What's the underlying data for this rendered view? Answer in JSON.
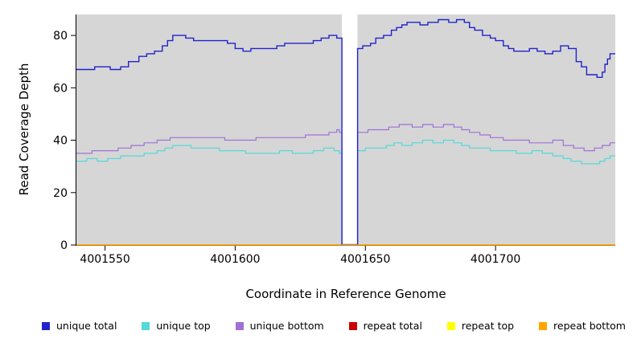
{
  "chart_data": {
    "type": "line",
    "subtype": "step-coverage",
    "title": "",
    "xlabel": "Coordinate in Reference Genome",
    "ylabel": "Read Coverage Depth",
    "xlim": [
      4001539,
      4001746
    ],
    "ylim": [
      0,
      88
    ],
    "xticks": [
      "4001550",
      "4001600",
      "4001650",
      "4001700"
    ],
    "xtick_values": [
      4001550,
      4001600,
      4001650,
      4001700
    ],
    "yticks": [
      "0",
      "20",
      "40",
      "60",
      "80"
    ],
    "ytick_values": [
      0,
      20,
      40,
      60,
      80
    ],
    "panel_bg": "#D6D6D6",
    "page_bg": "#FFFFFF",
    "grid": "off",
    "legend_position": "bottom",
    "gap_region": {
      "start": 4001641,
      "end": 4001647,
      "fill": "#FFFFFF"
    },
    "series": [
      {
        "name": "unique total",
        "color": "#2222CC",
        "step_points": [
          [
            4001539,
            67
          ],
          [
            4001546,
            68
          ],
          [
            4001552,
            67
          ],
          [
            4001556,
            68
          ],
          [
            4001559,
            70
          ],
          [
            4001563,
            72
          ],
          [
            4001566,
            73
          ],
          [
            4001569,
            74
          ],
          [
            4001572,
            76
          ],
          [
            4001574,
            78
          ],
          [
            4001576,
            80
          ],
          [
            4001581,
            79
          ],
          [
            4001584,
            78
          ],
          [
            4001597,
            77
          ],
          [
            4001600,
            75
          ],
          [
            4001603,
            74
          ],
          [
            4001606,
            75
          ],
          [
            4001616,
            76
          ],
          [
            4001619,
            77
          ],
          [
            4001630,
            78
          ],
          [
            4001633,
            79
          ],
          [
            4001636,
            80
          ],
          [
            4001639,
            79
          ],
          [
            4001641,
            0
          ],
          [
            4001647,
            75
          ],
          [
            4001649,
            76
          ],
          [
            4001652,
            77
          ],
          [
            4001654,
            79
          ],
          [
            4001657,
            80
          ],
          [
            4001660,
            82
          ],
          [
            4001662,
            83
          ],
          [
            4001664,
            84
          ],
          [
            4001666,
            85
          ],
          [
            4001671,
            84
          ],
          [
            4001674,
            85
          ],
          [
            4001678,
            86
          ],
          [
            4001682,
            85
          ],
          [
            4001685,
            86
          ],
          [
            4001688,
            85
          ],
          [
            4001690,
            83
          ],
          [
            4001692,
            82
          ],
          [
            4001695,
            80
          ],
          [
            4001698,
            79
          ],
          [
            4001700,
            78
          ],
          [
            4001703,
            76
          ],
          [
            4001705,
            75
          ],
          [
            4001707,
            74
          ],
          [
            4001713,
            75
          ],
          [
            4001716,
            74
          ],
          [
            4001719,
            73
          ],
          [
            4001722,
            74
          ],
          [
            4001725,
            76
          ],
          [
            4001728,
            75
          ],
          [
            4001731,
            70
          ],
          [
            4001733,
            68
          ],
          [
            4001735,
            65
          ],
          [
            4001739,
            64
          ],
          [
            4001741,
            66
          ],
          [
            4001742,
            69
          ],
          [
            4001743,
            71
          ],
          [
            4001744,
            73
          ]
        ]
      },
      {
        "name": "unique top",
        "color": "#55D8D8",
        "step_points": [
          [
            4001539,
            32
          ],
          [
            4001543,
            33
          ],
          [
            4001547,
            32
          ],
          [
            4001551,
            33
          ],
          [
            4001556,
            34
          ],
          [
            4001565,
            35
          ],
          [
            4001570,
            36
          ],
          [
            4001573,
            37
          ],
          [
            4001576,
            38
          ],
          [
            4001583,
            37
          ],
          [
            4001594,
            36
          ],
          [
            4001604,
            35
          ],
          [
            4001617,
            36
          ],
          [
            4001622,
            35
          ],
          [
            4001630,
            36
          ],
          [
            4001634,
            37
          ],
          [
            4001638,
            36
          ],
          [
            4001640,
            35
          ],
          [
            4001641,
            0
          ],
          [
            4001647,
            36
          ],
          [
            4001650,
            37
          ],
          [
            4001658,
            38
          ],
          [
            4001661,
            39
          ],
          [
            4001664,
            38
          ],
          [
            4001668,
            39
          ],
          [
            4001672,
            40
          ],
          [
            4001676,
            39
          ],
          [
            4001680,
            40
          ],
          [
            4001684,
            39
          ],
          [
            4001687,
            38
          ],
          [
            4001690,
            37
          ],
          [
            4001698,
            36
          ],
          [
            4001708,
            35
          ],
          [
            4001714,
            36
          ],
          [
            4001718,
            35
          ],
          [
            4001722,
            34
          ],
          [
            4001726,
            33
          ],
          [
            4001729,
            32
          ],
          [
            4001733,
            31
          ],
          [
            4001740,
            32
          ],
          [
            4001742,
            33
          ],
          [
            4001744,
            34
          ]
        ]
      },
      {
        "name": "unique bottom",
        "color": "#A070D6",
        "step_points": [
          [
            4001539,
            35
          ],
          [
            4001545,
            36
          ],
          [
            4001555,
            37
          ],
          [
            4001560,
            38
          ],
          [
            4001565,
            39
          ],
          [
            4001570,
            40
          ],
          [
            4001575,
            41
          ],
          [
            4001596,
            40
          ],
          [
            4001608,
            41
          ],
          [
            4001627,
            42
          ],
          [
            4001636,
            43
          ],
          [
            4001639,
            44
          ],
          [
            4001640,
            43
          ],
          [
            4001641,
            0
          ],
          [
            4001647,
            43
          ],
          [
            4001651,
            44
          ],
          [
            4001659,
            45
          ],
          [
            4001663,
            46
          ],
          [
            4001668,
            45
          ],
          [
            4001672,
            46
          ],
          [
            4001676,
            45
          ],
          [
            4001680,
            46
          ],
          [
            4001684,
            45
          ],
          [
            4001687,
            44
          ],
          [
            4001690,
            43
          ],
          [
            4001694,
            42
          ],
          [
            4001698,
            41
          ],
          [
            4001703,
            40
          ],
          [
            4001713,
            39
          ],
          [
            4001722,
            40
          ],
          [
            4001726,
            38
          ],
          [
            4001730,
            37
          ],
          [
            4001734,
            36
          ],
          [
            4001738,
            37
          ],
          [
            4001741,
            38
          ],
          [
            4001744,
            39
          ]
        ]
      },
      {
        "name": "repeat total",
        "color": "#CC0000",
        "step_points": [
          [
            4001539,
            0
          ]
        ]
      },
      {
        "name": "repeat top",
        "color": "#FFFF00",
        "step_points": [
          [
            4001539,
            0
          ]
        ]
      },
      {
        "name": "repeat bottom",
        "color": "#FFA500",
        "step_points": [
          [
            4001539,
            0
          ]
        ]
      }
    ],
    "legend": [
      {
        "label": "unique total",
        "color": "#2222CC"
      },
      {
        "label": "unique top",
        "color": "#55D8D8"
      },
      {
        "label": "unique bottom",
        "color": "#A070D6"
      },
      {
        "label": "repeat total",
        "color": "#CC0000"
      },
      {
        "label": "repeat top",
        "color": "#FFFF00"
      },
      {
        "label": "repeat bottom",
        "color": "#FFA500"
      }
    ]
  }
}
